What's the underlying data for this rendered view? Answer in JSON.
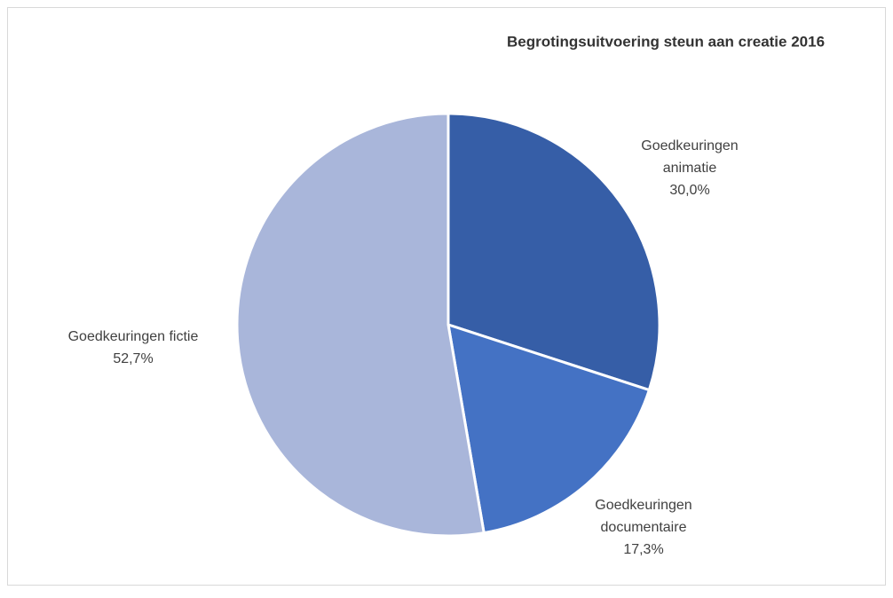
{
  "chart_data": {
    "type": "pie",
    "title": "Begrotingsuitvoering steun aan creatie 2016",
    "categories": [
      "Goedkeuringen animatie",
      "Goedkeuringen documentaire",
      "Goedkeuringen fictie"
    ],
    "values": [
      30.0,
      17.3,
      52.7
    ],
    "value_labels": [
      "30,0%",
      "17,3%",
      "52,7%"
    ],
    "colors": [
      "#365ea7",
      "#4472c4",
      "#a9b6da"
    ]
  }
}
